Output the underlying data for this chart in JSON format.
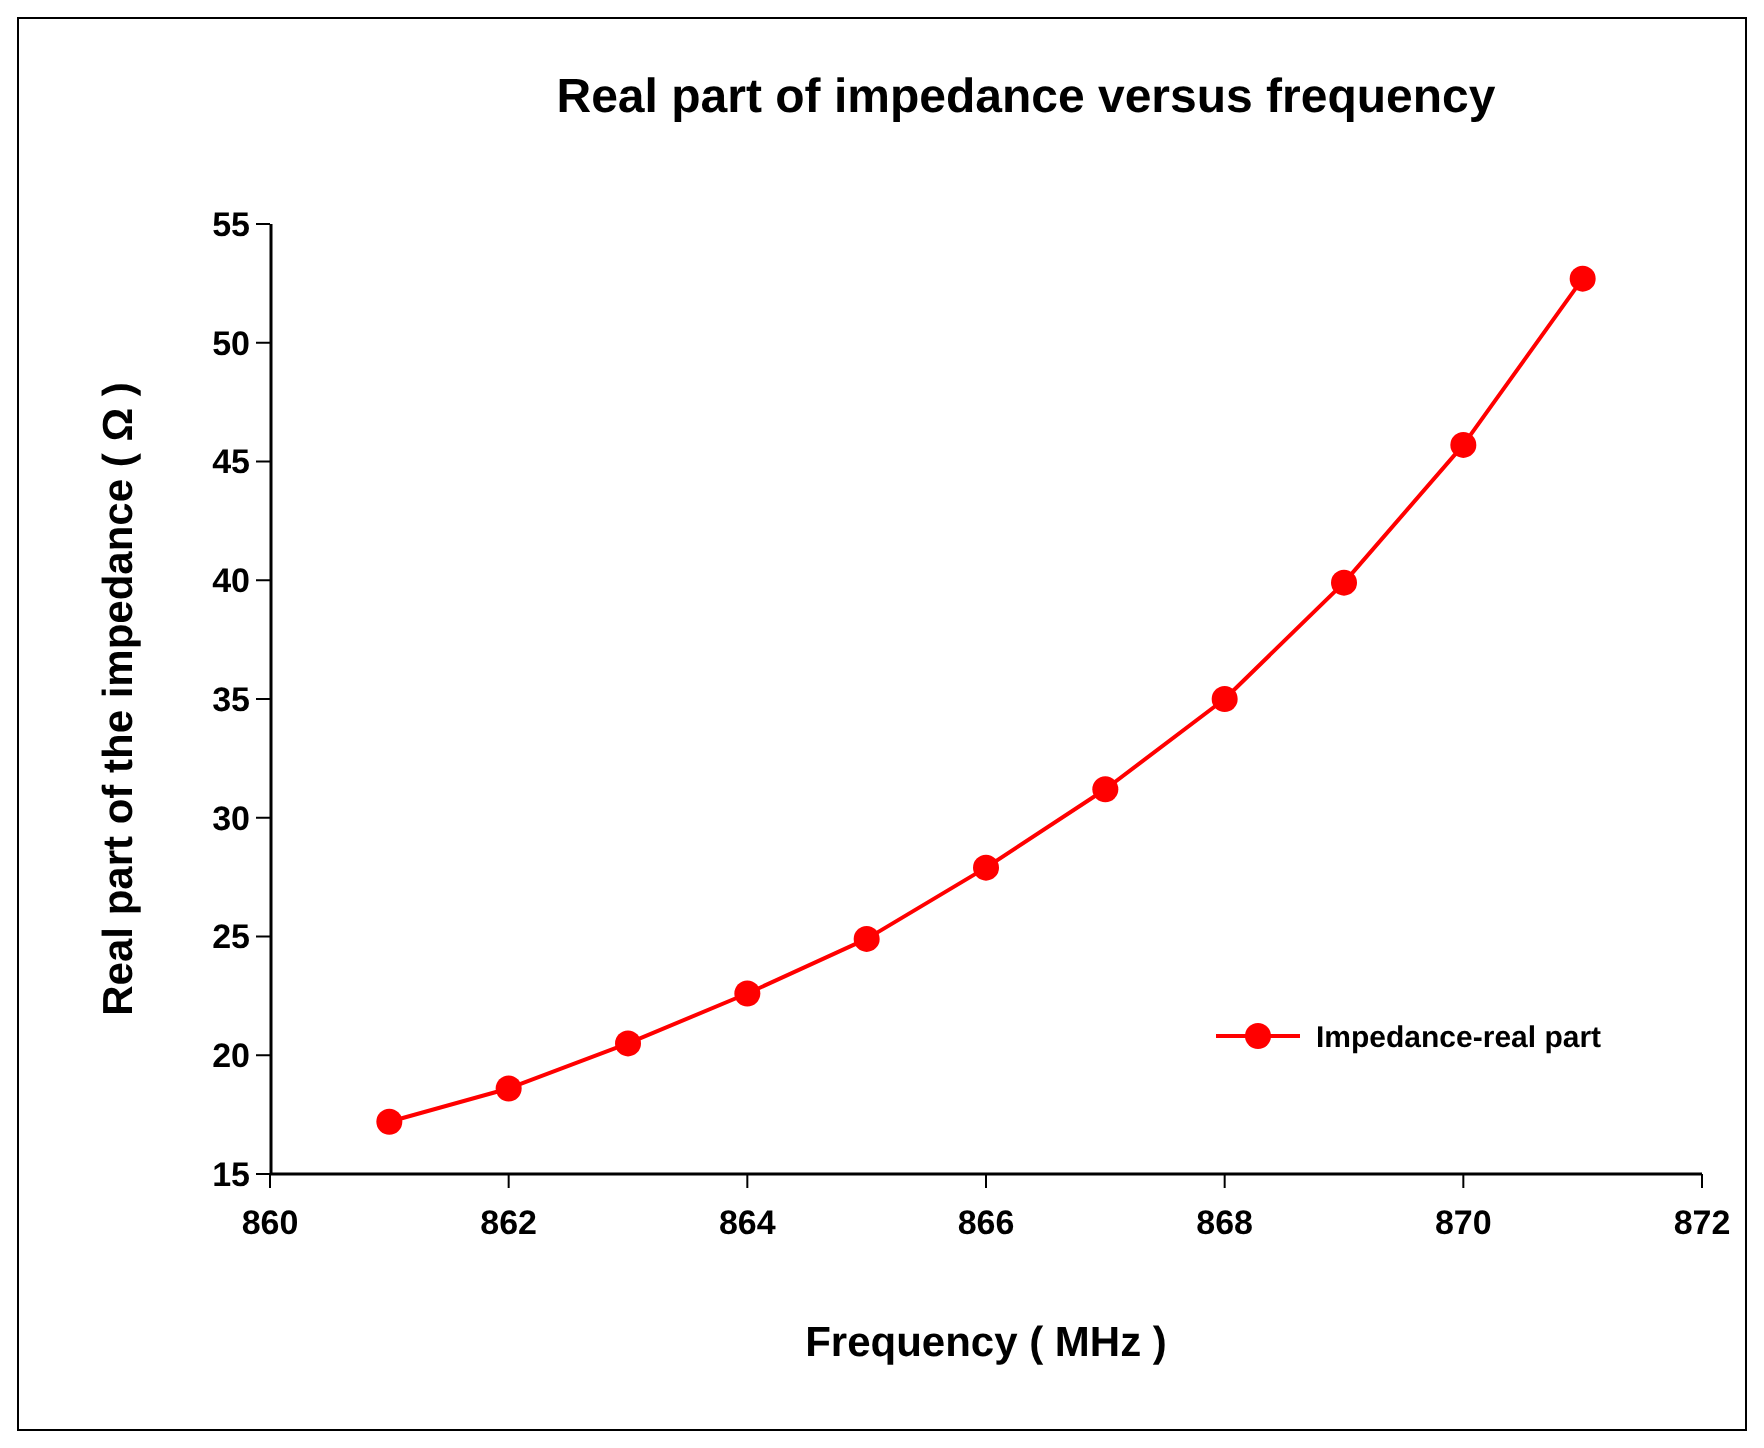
{
  "chart_data": {
    "type": "line",
    "title": "Real part of impedance versus frequency",
    "xlabel": "Frequency ( MHz )",
    "ylabel": "Real part of the impedance ( Ω )",
    "x": [
      861,
      862,
      863,
      864,
      865,
      866,
      867,
      868,
      869,
      870,
      871
    ],
    "series": [
      {
        "name": "Impedance-real part",
        "color": "#ff0000",
        "values": [
          17.2,
          18.6,
          20.5,
          22.6,
          24.9,
          27.9,
          31.2,
          35.0,
          39.9,
          45.7,
          52.7
        ]
      }
    ],
    "xlim": [
      860,
      872
    ],
    "xticks": [
      860,
      862,
      864,
      866,
      868,
      870,
      872
    ],
    "ylim": [
      15,
      55
    ],
    "yticks": [
      15,
      20,
      25,
      30,
      35,
      40,
      45,
      50,
      55
    ],
    "marker": "circle",
    "line_style": "solid",
    "legend": "right",
    "grid": false
  }
}
